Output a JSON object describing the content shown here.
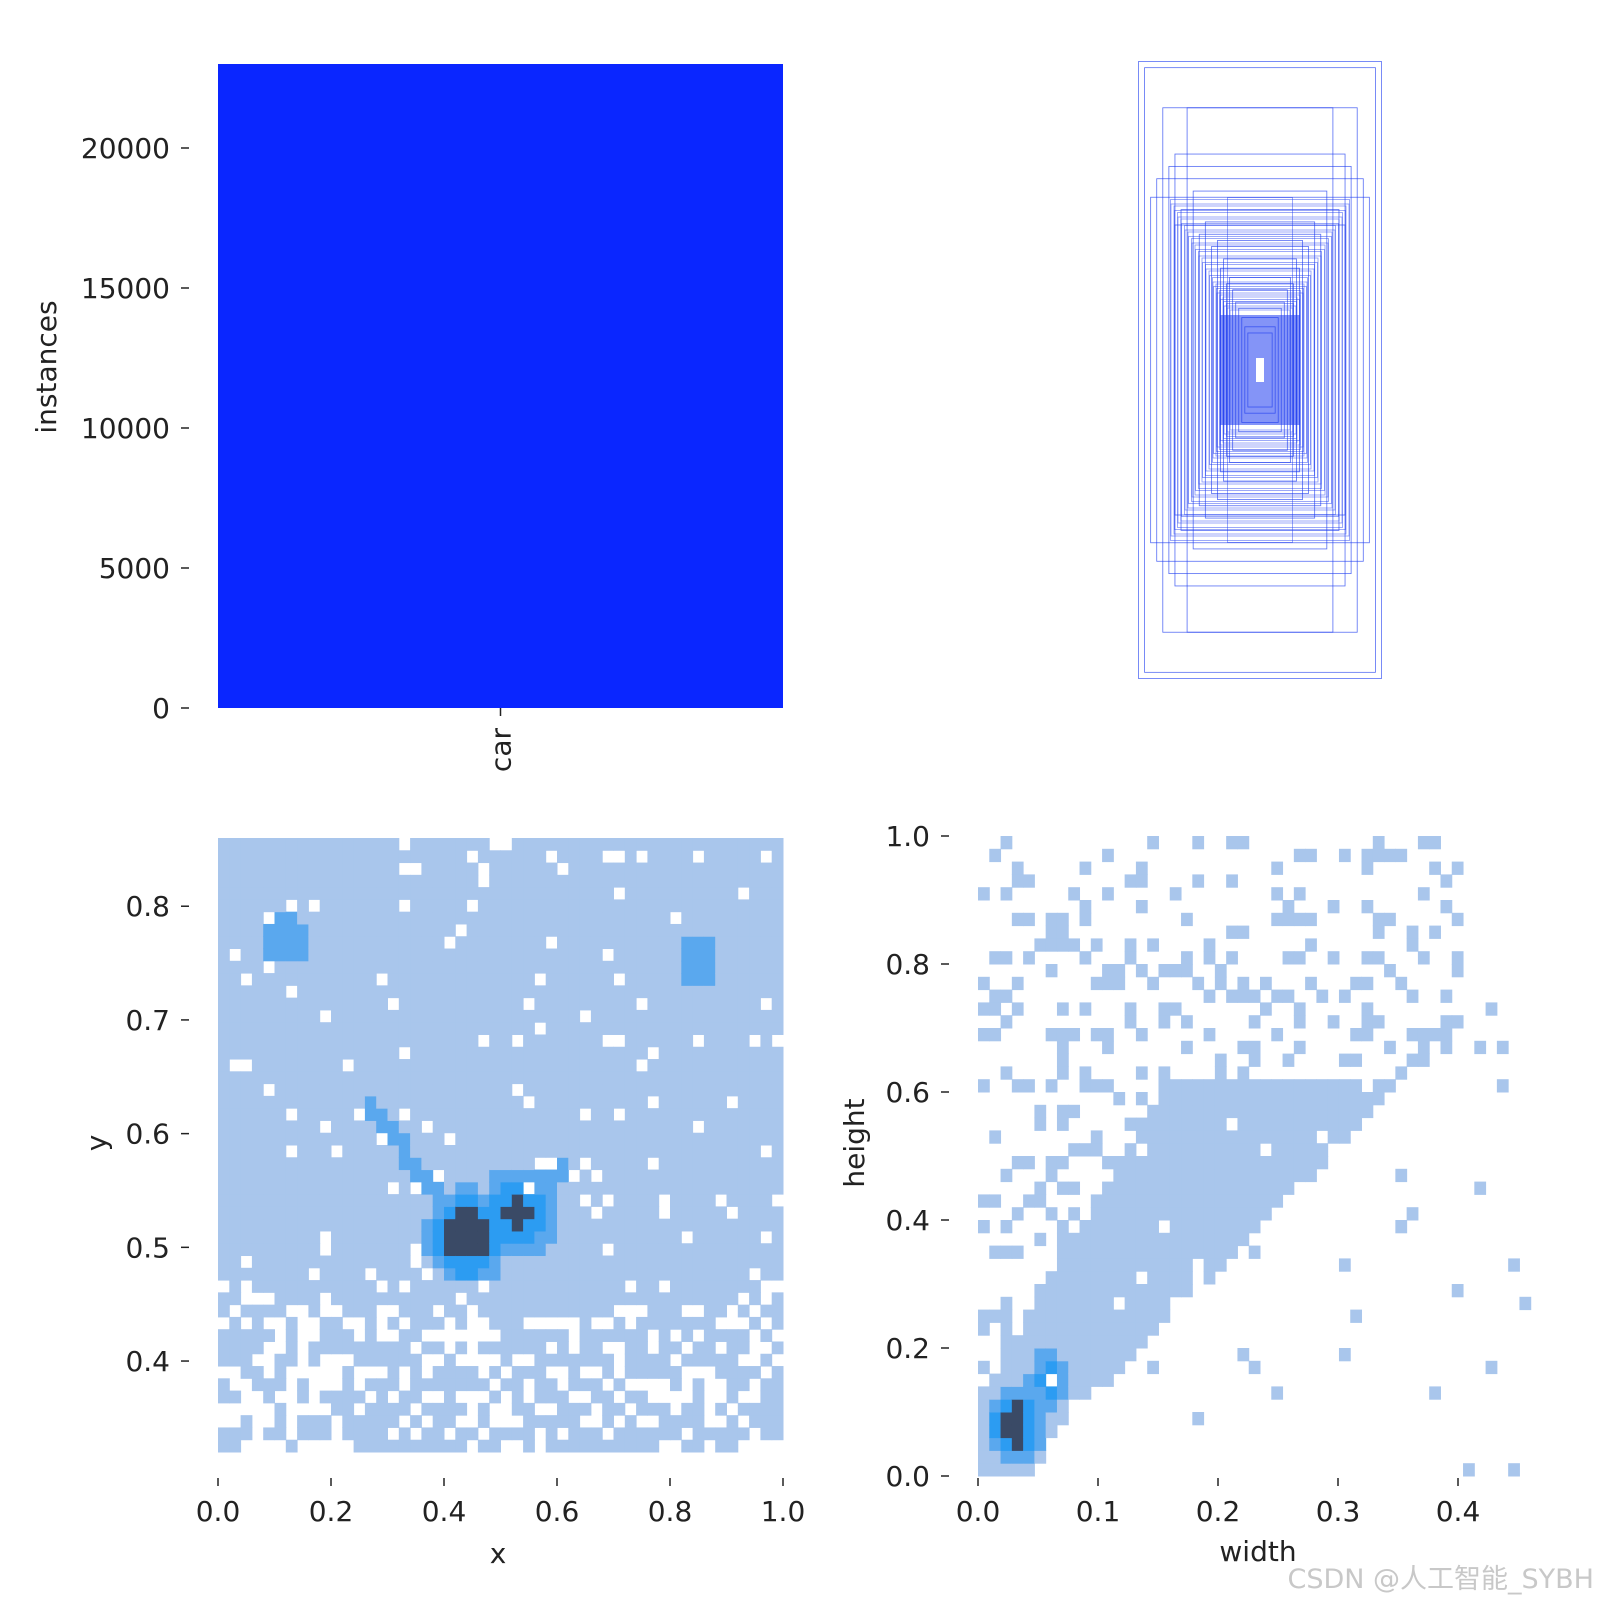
{
  "colors": {
    "bar": "#0a26ff",
    "box": "#1f3df0",
    "hist_light": "#a9c6ec",
    "hist_mid": "#5aa8ee",
    "hist_bright": "#2c9cf2",
    "hist_dark": "#3a4a66"
  },
  "watermark": "CSDN @人工智能_SYBH",
  "chart_data": [
    {
      "type": "bar",
      "categories": [
        "car"
      ],
      "values": [
        23000
      ],
      "xlabel": "",
      "ylabel": "instances",
      "ylim": [
        0,
        23000
      ],
      "yticks": [
        "0",
        "5000",
        "10000",
        "15000",
        "20000"
      ],
      "grid": false
    },
    {
      "type": "boxes",
      "description_of_marks": "overlaid bounding-box rectangles centered at a common point",
      "boxes": [
        [
          0.2,
          1.0
        ],
        [
          0.19,
          0.98
        ],
        [
          0.16,
          0.85
        ],
        [
          0.12,
          0.85
        ],
        [
          0.14,
          0.7
        ],
        [
          0.17,
          0.62
        ],
        [
          0.11,
          0.58
        ],
        [
          0.09,
          0.48
        ],
        [
          0.07,
          0.42
        ],
        [
          0.06,
          0.36
        ],
        [
          0.05,
          0.3
        ],
        [
          0.045,
          0.26
        ],
        [
          0.04,
          0.22
        ],
        [
          0.035,
          0.2
        ],
        [
          0.03,
          0.17
        ],
        [
          0.025,
          0.14
        ],
        [
          0.02,
          0.12
        ],
        [
          0.15,
          0.66
        ],
        [
          0.13,
          0.52
        ],
        [
          0.1,
          0.44
        ],
        [
          0.08,
          0.4
        ],
        [
          0.065,
          0.33
        ],
        [
          0.055,
          0.28
        ],
        [
          0.18,
          0.56
        ],
        [
          0.14,
          0.47
        ]
      ]
    },
    {
      "type": "heatmap",
      "xlabel": "x",
      "ylabel": "y",
      "xlim": [
        0.0,
        1.0
      ],
      "ylim": [
        0.32,
        0.86
      ],
      "xticks": [
        "0.0",
        "0.2",
        "0.4",
        "0.6",
        "0.8",
        "1.0"
      ],
      "yticks": [
        "0.4",
        "0.5",
        "0.6",
        "0.7",
        "0.8"
      ],
      "hotspots": [
        {
          "x": 0.12,
          "y": 0.77,
          "weight": 0.55
        },
        {
          "x": 0.85,
          "y": 0.75,
          "weight": 0.55
        },
        {
          "x": 0.44,
          "y": 0.51,
          "weight": 1.0
        },
        {
          "x": 0.53,
          "y": 0.53,
          "weight": 0.9
        }
      ]
    },
    {
      "type": "heatmap",
      "xlabel": "width",
      "ylabel": "height",
      "xlim": [
        0.0,
        0.47
      ],
      "ylim": [
        0.0,
        1.0
      ],
      "xticks": [
        "0.0",
        "0.1",
        "0.2",
        "0.3",
        "0.4"
      ],
      "yticks": [
        "0.0",
        "0.2",
        "0.4",
        "0.6",
        "0.8",
        "1.0"
      ],
      "hotspots": [
        {
          "x": 0.03,
          "y": 0.08,
          "weight": 1.0
        },
        {
          "x": 0.06,
          "y": 0.15,
          "weight": 0.7
        }
      ]
    }
  ]
}
